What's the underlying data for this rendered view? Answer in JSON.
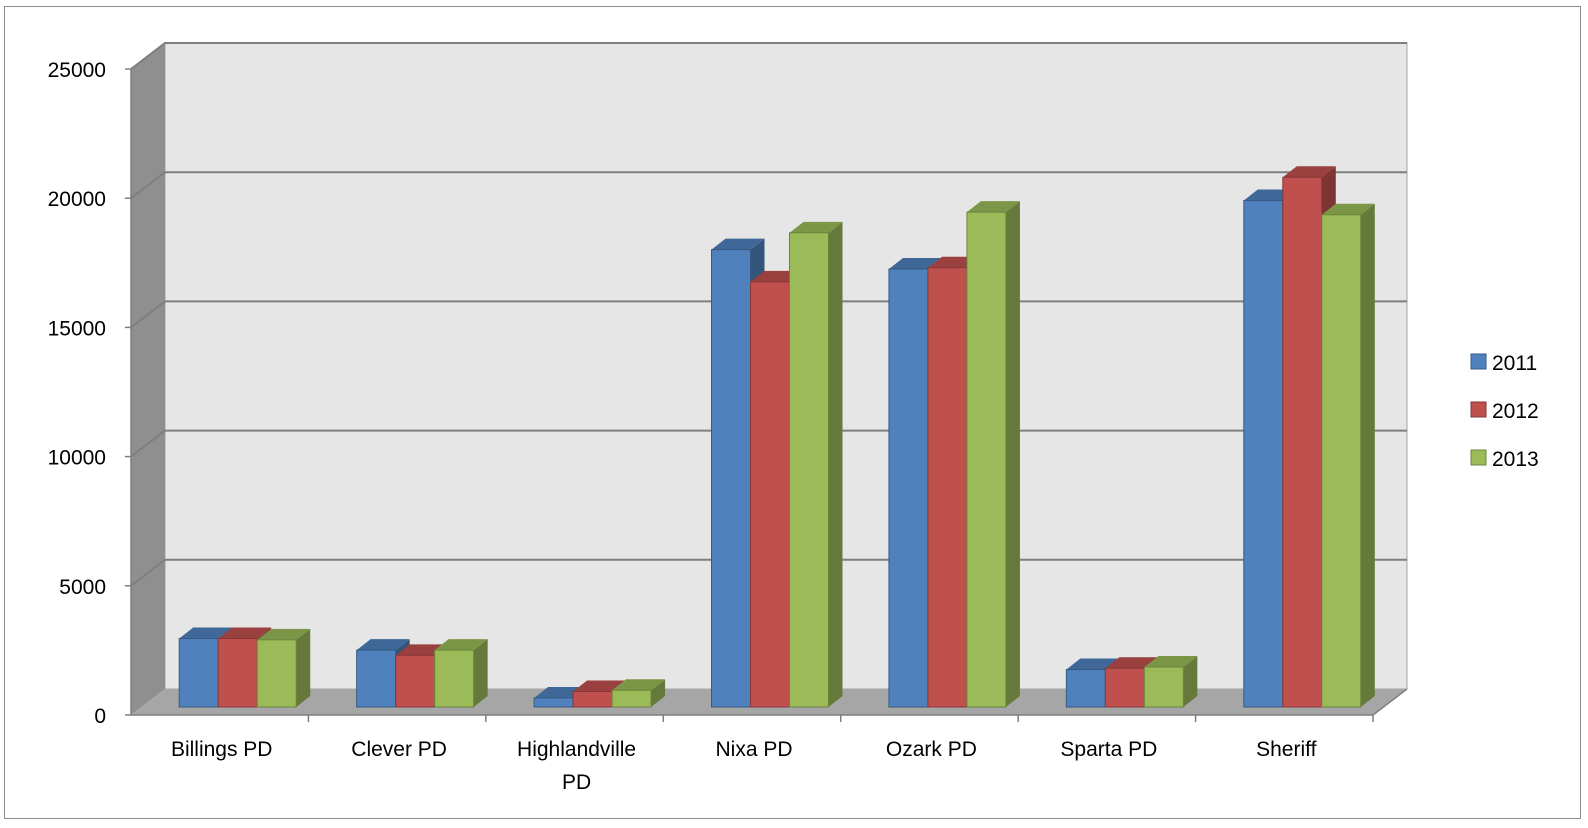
{
  "chart_data": {
    "type": "bar",
    "style": "3d-clustered-column",
    "title": "",
    "xlabel": "",
    "ylabel": "",
    "categories": [
      [
        "Billings PD"
      ],
      [
        "Clever PD"
      ],
      [
        "Highlandville",
        "PD"
      ],
      [
        "Nixa PD"
      ],
      [
        "Ozark PD"
      ],
      [
        "Sparta PD"
      ],
      [
        "Sheriff"
      ]
    ],
    "series": [
      {
        "name": "2011",
        "color": "#4f81bd",
        "values": [
          2650,
          2200,
          350,
          17700,
          16950,
          1450,
          19600
        ]
      },
      {
        "name": "2012",
        "color": "#c0504d",
        "values": [
          2650,
          2000,
          600,
          16450,
          17000,
          1500,
          20500
        ]
      },
      {
        "name": "2013",
        "color": "#9bbb59",
        "values": [
          2600,
          2200,
          650,
          18350,
          19150,
          1550,
          19050
        ]
      }
    ],
    "ylim": [
      0,
      25000
    ],
    "yticks": [
      0,
      5000,
      10000,
      15000,
      20000,
      25000
    ],
    "ytick_labels": [
      "0",
      "5000",
      "10000",
      "15000",
      "20000",
      "25000"
    ],
    "grid": true,
    "legend_position": "right"
  }
}
